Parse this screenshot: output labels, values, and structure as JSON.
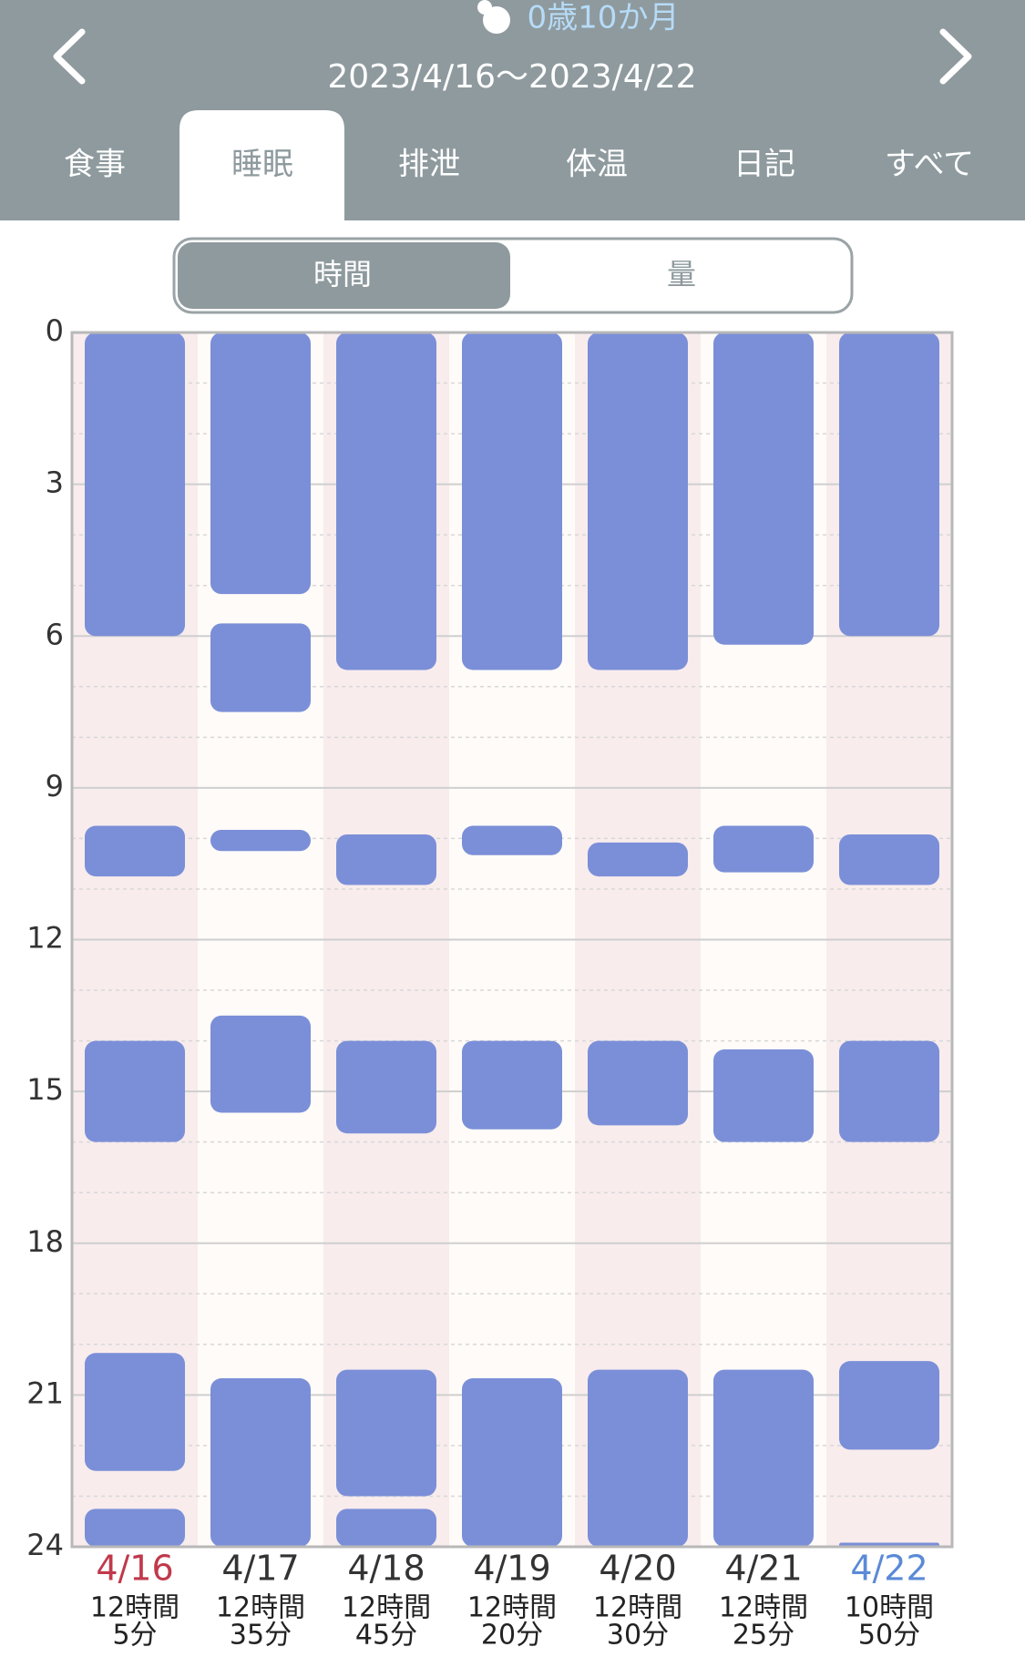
{
  "header": {
    "age": "0歳10か月",
    "date_range": "2023/4/16〜2023/4/22"
  },
  "tabs": [
    "食事",
    "睡眠",
    "排泄",
    "体温",
    "日記",
    "すべて"
  ],
  "active_tab": 1,
  "toggle": [
    "時間",
    "量"
  ],
  "active_toggle": 0,
  "chart_data": {
    "type": "range-bar",
    "color": "#7b8fd8",
    "categories": [
      "4/16",
      "4/17",
      "4/18",
      "4/19",
      "4/20",
      "4/21",
      "4/22"
    ],
    "category_colors": [
      "#c0394b",
      "#333333",
      "#333333",
      "#333333",
      "#333333",
      "#333333",
      "#5b8ad6"
    ],
    "summaries": [
      [
        "12時間",
        "5分"
      ],
      [
        "12時間",
        "35分"
      ],
      [
        "12時間",
        "45分"
      ],
      [
        "12時間",
        "20分"
      ],
      [
        "12時間",
        "30分"
      ],
      [
        "12時間",
        "25分"
      ],
      [
        "10時間",
        "50分"
      ]
    ],
    "ranges": [
      [
        [
          0,
          6
        ],
        [
          9.75,
          10.75
        ],
        [
          14,
          16
        ],
        [
          20.17,
          22.5
        ],
        [
          23.25,
          24
        ]
      ],
      [
        [
          0,
          5.17
        ],
        [
          5.75,
          7.5
        ],
        [
          9.83,
          10.25
        ],
        [
          13.5,
          15.42
        ],
        [
          20.67,
          24
        ]
      ],
      [
        [
          0,
          6.67
        ],
        [
          9.92,
          10.92
        ],
        [
          14,
          15.83
        ],
        [
          20.5,
          23
        ],
        [
          23.25,
          24
        ]
      ],
      [
        [
          0,
          6.67
        ],
        [
          9.75,
          10.33
        ],
        [
          14,
          15.75
        ],
        [
          20.67,
          24
        ]
      ],
      [
        [
          0,
          6.67
        ],
        [
          10.08,
          10.75
        ],
        [
          14,
          15.67
        ],
        [
          20.5,
          24
        ]
      ],
      [
        [
          0,
          6.17
        ],
        [
          9.75,
          10.67
        ],
        [
          14.17,
          16
        ],
        [
          20.5,
          24
        ]
      ],
      [
        [
          0,
          6
        ],
        [
          9.92,
          10.92
        ],
        [
          14,
          16
        ],
        [
          20.33,
          22.08
        ],
        [
          23.92,
          24
        ]
      ]
    ],
    "ylim": [
      0,
      24
    ],
    "yticks": [
      0,
      3,
      6,
      9,
      12,
      15,
      18,
      21,
      24
    ],
    "grid": true,
    "minor_grid": true
  }
}
